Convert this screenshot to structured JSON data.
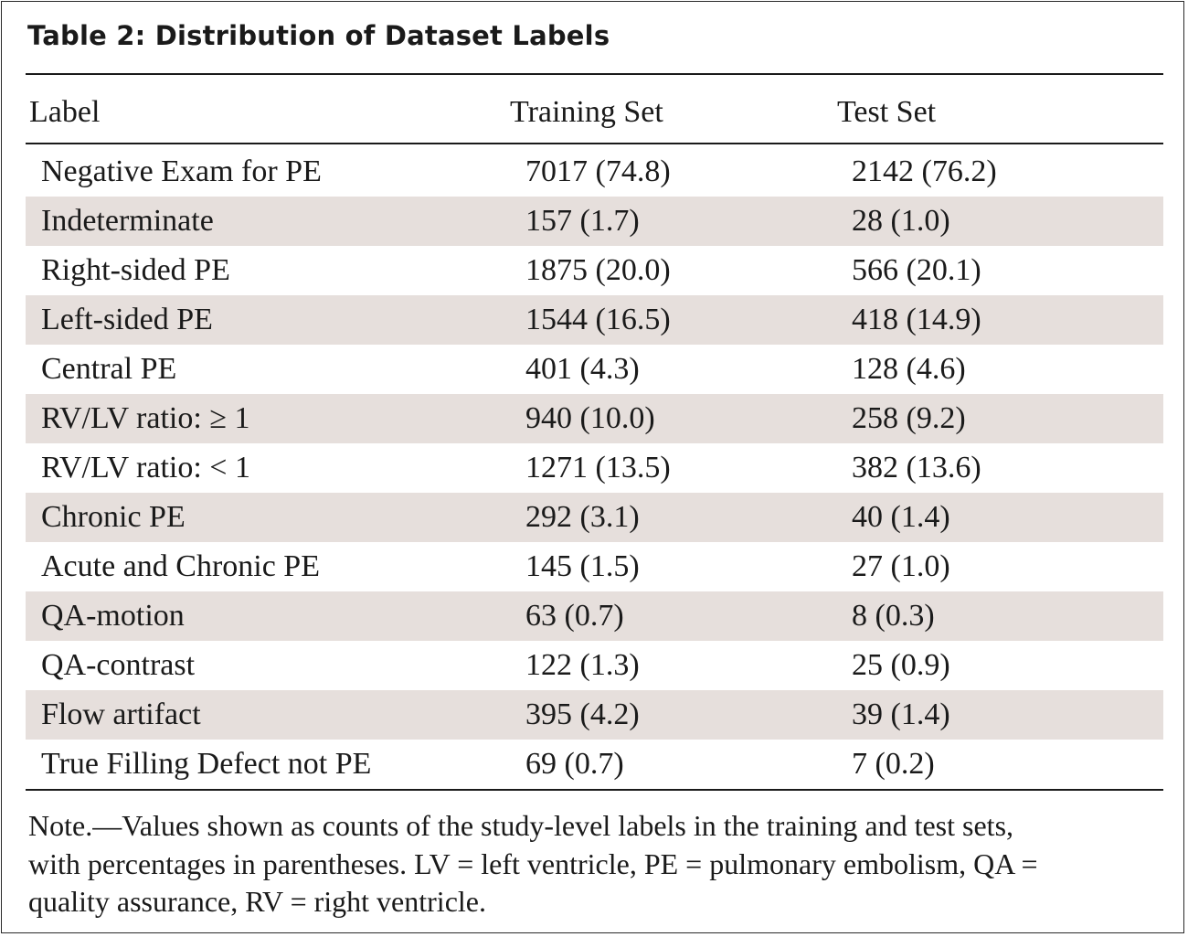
{
  "table": {
    "title": "Table 2: Distribution of Dataset Labels",
    "headers": {
      "label": "Label",
      "training": "Training Set",
      "test": "Test Set"
    },
    "rows": [
      {
        "label": "Negative Exam for PE",
        "training": "7017 (74.8)",
        "test": "2142 (76.2)"
      },
      {
        "label": "Indeterminate",
        "training": "157 (1.7)",
        "test": "28 (1.0)"
      },
      {
        "label": "Right-sided PE",
        "training": "1875 (20.0)",
        "test": "566 (20.1)"
      },
      {
        "label": "Left-sided PE",
        "training": "1544 (16.5)",
        "test": "418 (14.9)"
      },
      {
        "label": "Central PE",
        "training": "401 (4.3)",
        "test": "128 (4.6)"
      },
      {
        "label": "RV/LV ratio: ≥ 1",
        "training": "940 (10.0)",
        "test": "258 (9.2)"
      },
      {
        "label": "RV/LV ratio: < 1",
        "training": "1271 (13.5)",
        "test": "382 (13.6)"
      },
      {
        "label": "Chronic PE",
        "training": "292 (3.1)",
        "test": "40 (1.4)"
      },
      {
        "label": "Acute and Chronic PE",
        "training": "145 (1.5)",
        "test": "27 (1.0)"
      },
      {
        "label": "QA-motion",
        "training": "63 (0.7)",
        "test": "8 (0.3)"
      },
      {
        "label": "QA-contrast",
        "training": "122 (1.3)",
        "test": "25 (0.9)"
      },
      {
        "label": "Flow artifact",
        "training": "395 (4.2)",
        "test": "39 (1.4)"
      },
      {
        "label": "True Filling Defect not PE",
        "training": "69 (0.7)",
        "test": "7 (0.2)"
      }
    ],
    "note_lines": [
      "Note.—Values shown as counts of the study-level labels in the training and test sets,",
      "with percentages in parentheses. LV = left ventricle, PE = pulmonary embolism, QA =",
      "quality assurance, RV = right ventricle."
    ],
    "colors": {
      "shaded_row": "#e6dfdc",
      "text": "#1a1a1a"
    }
  }
}
